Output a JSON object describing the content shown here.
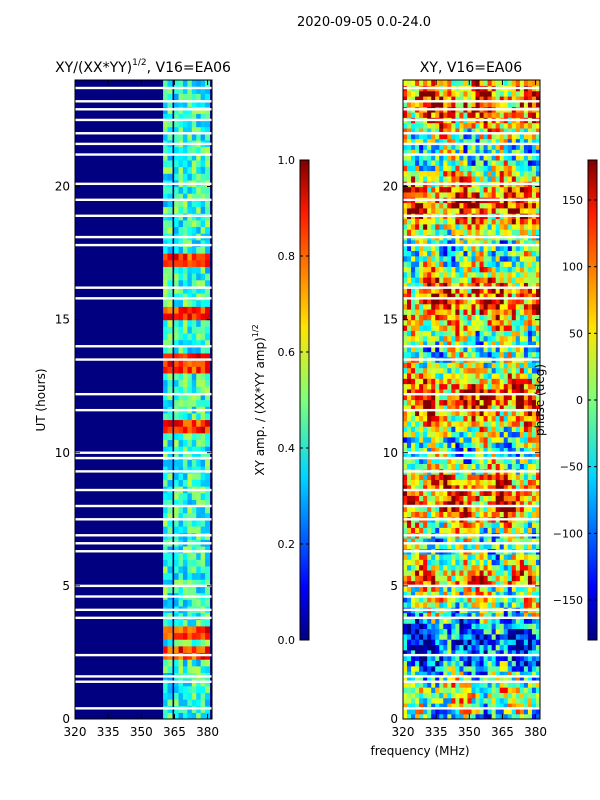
{
  "figure": {
    "suptitle": "2020-09-05 0.0-24.0",
    "xlabel": "frequency (MHz)"
  },
  "chart_data": [
    {
      "type": "heatmap",
      "title_prefix": "XY/(XX*YY)",
      "title_exp": "1/2",
      "title_suffix": ", V16=EA06",
      "xlabel": "",
      "ylabel": "UT (hours)",
      "xlim": [
        320,
        382
      ],
      "ylim": [
        0,
        24
      ],
      "xticks": [
        320,
        335,
        350,
        365,
        380
      ],
      "yticks": [
        0,
        5,
        10,
        15,
        20
      ],
      "colormap": "jet",
      "colorbar": {
        "label_prefix": "XY amp. / (XX*YY amp)",
        "label_exp": "1/2",
        "range": [
          0.0,
          1.0
        ],
        "ticks": [
          0.0,
          0.2,
          0.4,
          0.6,
          0.8,
          1.0
        ],
        "tick_labels": [
          "0.0",
          "0.2",
          "0.4",
          "0.6",
          "0.8",
          "1.0"
        ]
      },
      "background_value": 0.0,
      "channel_columns_mhz": [
        361,
        363,
        366,
        368,
        370,
        372,
        374,
        376,
        378,
        380
      ],
      "bright_bands_hours": [
        [
          17.0,
          17.6
        ],
        [
          15.0,
          15.5
        ],
        [
          13.0,
          13.8
        ],
        [
          10.8,
          11.2
        ],
        [
          3.0,
          3.5
        ],
        [
          2.3,
          2.8
        ]
      ],
      "gap_rows_hours": [
        23.7,
        23.2,
        22.9,
        22.5,
        22.0,
        21.6,
        21.2,
        20.1,
        19.5,
        18.9,
        18.1,
        17.8,
        16.2,
        15.8,
        14.0,
        13.5,
        12.2,
        11.6,
        10.0,
        9.8,
        9.3,
        8.6,
        8.0,
        7.5,
        6.9,
        6.6,
        6.3,
        5.0,
        4.6,
        4.1,
        3.8,
        2.4,
        1.6,
        1.4,
        0.4
      ]
    },
    {
      "type": "heatmap",
      "title": "XY, V16=EA06",
      "xlabel": "",
      "ylabel": "",
      "xlim": [
        320,
        382
      ],
      "ylim": [
        0,
        24
      ],
      "xticks": [
        320,
        335,
        350,
        365,
        380
      ],
      "yticks": [
        0,
        5,
        10,
        15,
        20
      ],
      "colormap": "jet",
      "colorbar": {
        "label": "phase (deg)",
        "range": [
          -180,
          180
        ],
        "ticks": [
          -150,
          -100,
          -50,
          0,
          50,
          100,
          150
        ],
        "tick_labels": [
          "−150",
          "−100",
          "−50",
          "0",
          "50",
          "100",
          "150"
        ]
      },
      "gap_rows_hours": [
        23.7,
        23.2,
        22.9,
        22.5,
        22.0,
        21.6,
        21.2,
        20.1,
        19.5,
        18.9,
        18.1,
        17.8,
        16.2,
        15.8,
        14.0,
        13.5,
        12.2,
        11.6,
        10.0,
        9.8,
        9.3,
        8.6,
        8.0,
        7.5,
        6.9,
        6.6,
        6.3,
        5.0,
        4.6,
        4.1,
        3.8,
        2.4,
        1.6,
        1.4,
        0.4
      ]
    }
  ]
}
